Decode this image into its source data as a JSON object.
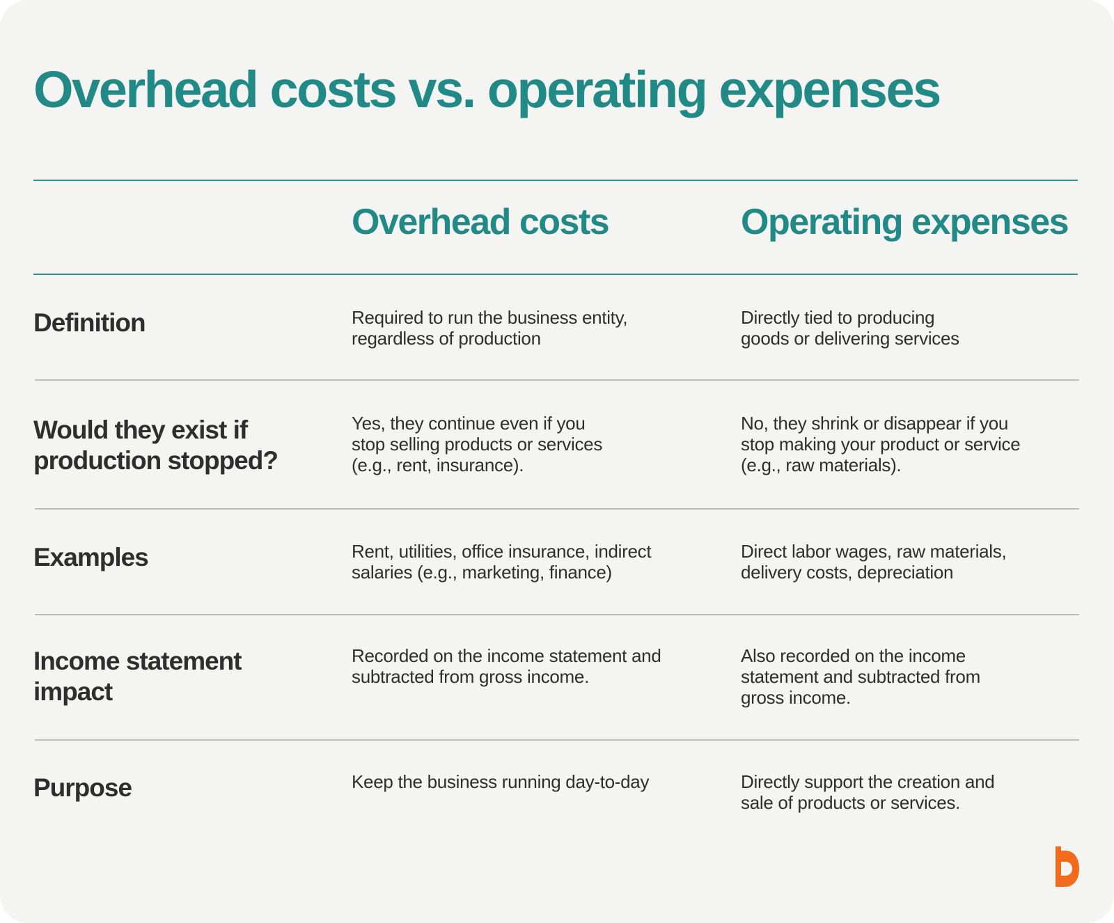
{
  "title": "Overhead costs vs. operating expenses",
  "columns": [
    "Overhead costs",
    "Operating expenses"
  ],
  "rows": [
    {
      "label": "Definition",
      "overhead": "Required to run the business entity, regardless of production",
      "operating": "Directly tied to producing goods or delivering services"
    },
    {
      "label": "Would they exist if production stopped?",
      "overhead": "Yes, they continue even if you stop selling products or services (e.g., rent, insurance).",
      "operating": "No, they shrink or disappear if you stop making your product or service (e.g., raw materials)."
    },
    {
      "label": "Examples",
      "overhead": "Rent, utilities, office insurance, indirect salaries (e.g., marketing, finance)",
      "operating": "Direct labor wages, raw materials, delivery costs, depreciation"
    },
    {
      "label": "Income statement impact",
      "overhead": "Recorded on the income statement and subtracted from gross income.",
      "operating": "Also recorded on the income statement and subtracted from gross income."
    },
    {
      "label": "Purpose",
      "overhead": "Keep the business running day-to-day",
      "operating": "Directly support the creation and sale of products or services."
    }
  ],
  "colors": {
    "accent": "#218a86",
    "text": "#2e2e2e",
    "background": "#f4f4f2",
    "logo": "#f26a1b"
  },
  "logo_icon": "brand-b-logo-icon"
}
